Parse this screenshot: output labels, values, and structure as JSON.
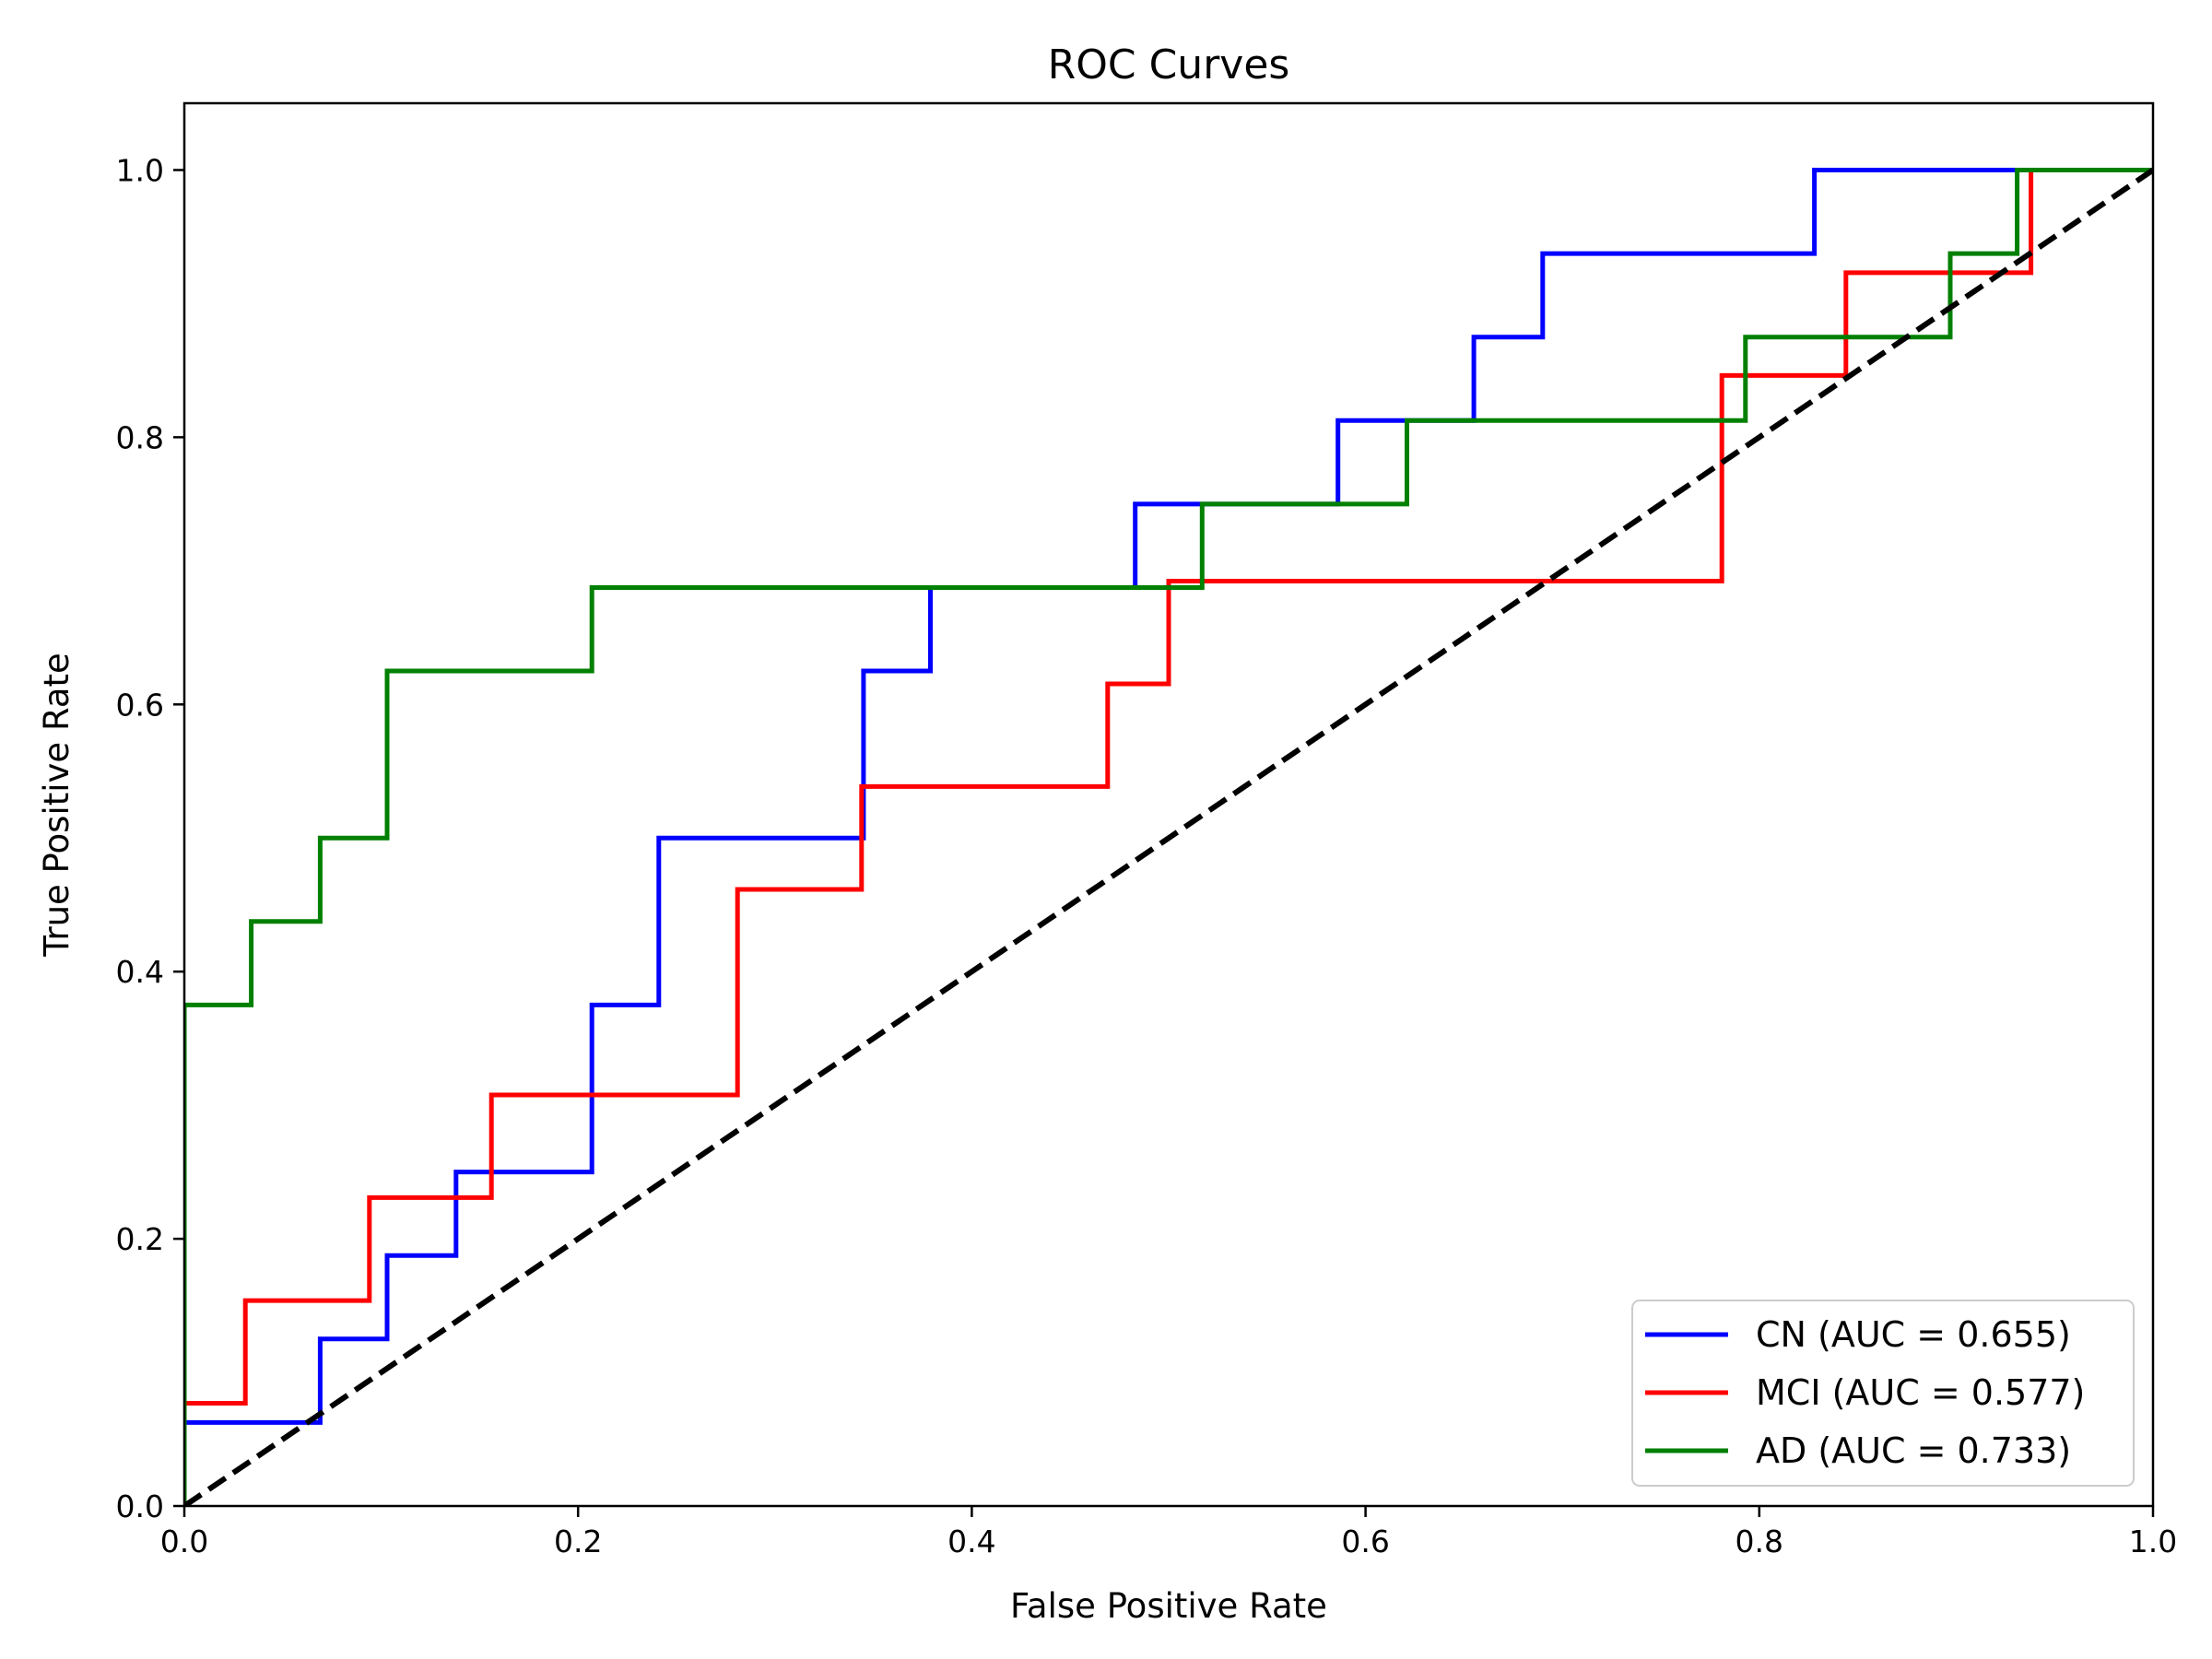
{
  "chart_data": {
    "type": "line",
    "title": "ROC Curves",
    "xlabel": "False Positive Rate",
    "ylabel": "True Positive Rate",
    "xlim": [
      0.0,
      1.0
    ],
    "ylim": [
      0.0,
      1.05
    ],
    "xticks": [
      0.0,
      0.2,
      0.4,
      0.6,
      0.8,
      1.0
    ],
    "yticks": [
      0.0,
      0.2,
      0.4,
      0.6,
      0.8,
      1.0
    ],
    "xtick_labels": [
      "0.0",
      "0.2",
      "0.4",
      "0.6",
      "0.8",
      "1.0"
    ],
    "ytick_labels": [
      "0.0",
      "0.2",
      "0.4",
      "0.6",
      "0.8",
      "1.0"
    ],
    "grid": false,
    "legend_position": "bottom-right",
    "series": [
      {
        "name": "CN (AUC = 0.655)",
        "color": "#0000ff",
        "x": [
          0.0,
          0.0,
          0.069,
          0.069,
          0.103,
          0.103,
          0.138,
          0.138,
          0.207,
          0.207,
          0.241,
          0.241,
          0.345,
          0.345,
          0.379,
          0.379,
          0.483,
          0.483,
          0.586,
          0.586,
          0.655,
          0.655,
          0.69,
          0.69,
          0.828,
          0.828,
          1.0
        ],
        "y": [
          0.0,
          0.0625,
          0.0625,
          0.125,
          0.125,
          0.1875,
          0.1875,
          0.25,
          0.25,
          0.375,
          0.375,
          0.5,
          0.5,
          0.625,
          0.625,
          0.6875,
          0.6875,
          0.75,
          0.75,
          0.8125,
          0.8125,
          0.875,
          0.875,
          0.9375,
          0.9375,
          1.0,
          1.0
        ]
      },
      {
        "name": "MCI (AUC = 0.577)",
        "color": "#ff0000",
        "x": [
          0.0,
          0.0,
          0.031,
          0.031,
          0.094,
          0.094,
          0.156,
          0.156,
          0.281,
          0.281,
          0.344,
          0.344,
          0.469,
          0.469,
          0.5,
          0.5,
          0.781,
          0.781,
          0.844,
          0.844,
          0.938,
          0.938,
          1.0
        ],
        "y": [
          0.0,
          0.0769,
          0.0769,
          0.1538,
          0.1538,
          0.2308,
          0.2308,
          0.3077,
          0.3077,
          0.4615,
          0.4615,
          0.5385,
          0.5385,
          0.6154,
          0.6154,
          0.6923,
          0.6923,
          0.8462,
          0.8462,
          0.9231,
          0.9231,
          1.0,
          1.0
        ]
      },
      {
        "name": "AD (AUC = 0.733)",
        "color": "#008000",
        "x": [
          0.0,
          0.0,
          0.034,
          0.034,
          0.069,
          0.069,
          0.103,
          0.103,
          0.207,
          0.207,
          0.517,
          0.517,
          0.621,
          0.621,
          0.793,
          0.793,
          0.897,
          0.897,
          0.931,
          0.931,
          1.0
        ],
        "y": [
          0.0,
          0.375,
          0.375,
          0.4375,
          0.4375,
          0.5,
          0.5,
          0.625,
          0.625,
          0.6875,
          0.6875,
          0.75,
          0.75,
          0.8125,
          0.8125,
          0.875,
          0.875,
          0.9375,
          0.9375,
          1.0,
          1.0
        ]
      }
    ],
    "reference_line": {
      "color": "#000000",
      "style": "dashed",
      "x": [
        0.0,
        1.0
      ],
      "y": [
        0.0,
        1.0
      ]
    }
  }
}
